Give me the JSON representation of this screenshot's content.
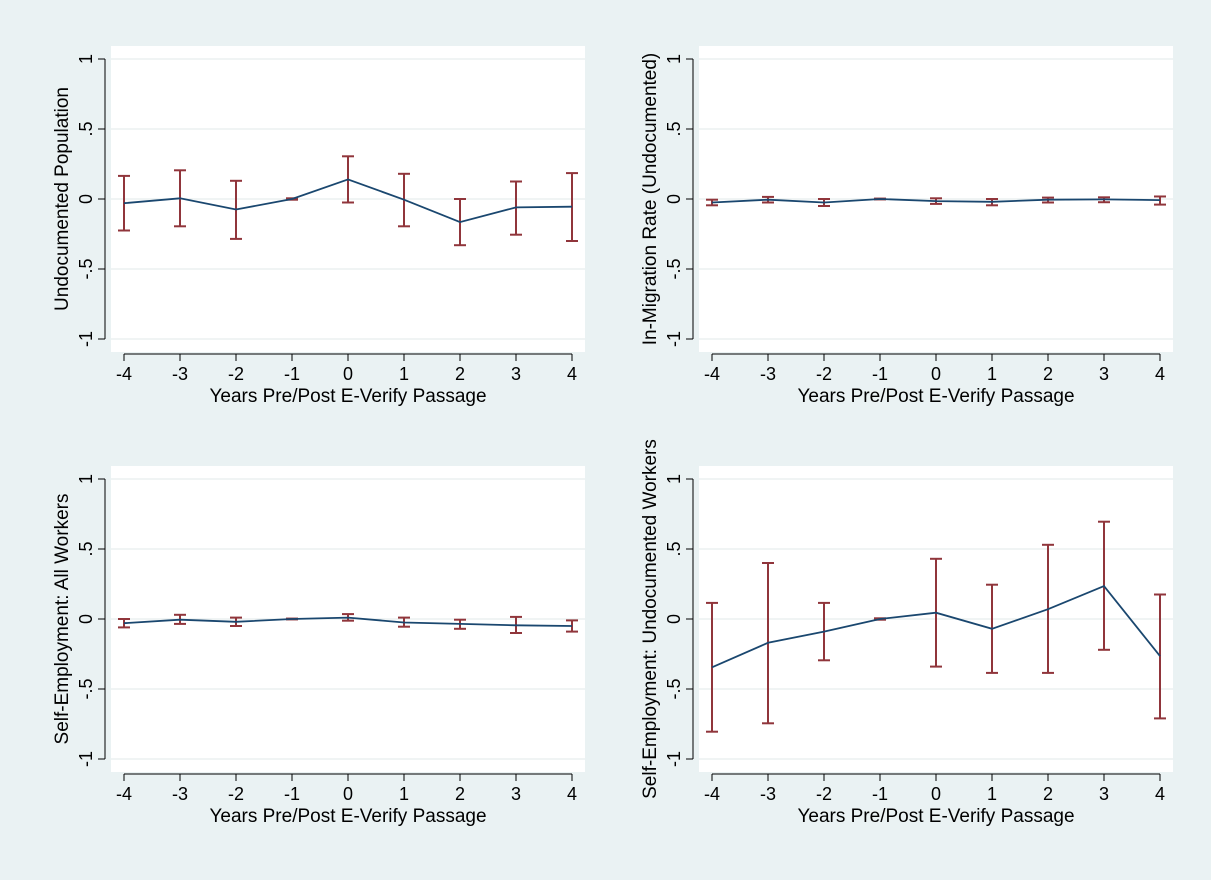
{
  "chart_data": [
    {
      "type": "line",
      "xlabel": "Years Pre/Post E-Verify Passage",
      "ylabel": "Undocumented Population",
      "x": [
        -4,
        -3,
        -2,
        -1,
        0,
        1,
        2,
        3,
        4
      ],
      "y": [
        -0.03,
        0.005,
        -0.075,
        0.0,
        0.14,
        -0.005,
        -0.165,
        -0.06,
        -0.055
      ],
      "ci_low": [
        -0.225,
        -0.195,
        -0.285,
        -0.005,
        -0.025,
        -0.195,
        -0.33,
        -0.255,
        -0.3
      ],
      "ci_high": [
        0.165,
        0.205,
        0.13,
        0.005,
        0.305,
        0.18,
        0.0,
        0.125,
        0.185
      ],
      "xlim": [
        -4,
        4
      ],
      "ylim": [
        -1,
        1
      ],
      "xticks": [
        "-4",
        "-3",
        "-2",
        "-1",
        "0",
        "1",
        "2",
        "3",
        "4"
      ],
      "yticks": [
        {
          "value": -1,
          "label": "-1"
        },
        {
          "value": -0.5,
          "label": "-.5"
        },
        {
          "value": 0,
          "label": "0"
        },
        {
          "value": 0.5,
          "label": ".5"
        },
        {
          "value": 1,
          "label": "1"
        }
      ],
      "grid": true
    },
    {
      "type": "line",
      "xlabel": "Years Pre/Post E-Verify Passage",
      "ylabel": "In-Migration Rate (Undocumented)",
      "x": [
        -4,
        -3,
        -2,
        -1,
        0,
        1,
        2,
        3,
        4
      ],
      "y": [
        -0.025,
        -0.005,
        -0.025,
        0.0,
        -0.015,
        -0.02,
        -0.005,
        -0.003,
        -0.008
      ],
      "ci_low": [
        -0.045,
        -0.025,
        -0.05,
        -0.003,
        -0.035,
        -0.045,
        -0.025,
        -0.023,
        -0.04
      ],
      "ci_high": [
        -0.005,
        0.015,
        0.0,
        0.003,
        0.005,
        0.0,
        0.01,
        0.012,
        0.018
      ],
      "xlim": [
        -4,
        4
      ],
      "ylim": [
        -1,
        1
      ],
      "xticks": [
        "-4",
        "-3",
        "-2",
        "-1",
        "0",
        "1",
        "2",
        "3",
        "4"
      ],
      "yticks": [
        {
          "value": -1,
          "label": "-1"
        },
        {
          "value": -0.5,
          "label": "-.5"
        },
        {
          "value": 0,
          "label": "0"
        },
        {
          "value": 0.5,
          "label": ".5"
        },
        {
          "value": 1,
          "label": "1"
        }
      ],
      "grid": true
    },
    {
      "type": "line",
      "xlabel": "Years Pre/Post E-Verify Passage",
      "ylabel": "Self-Employment: All Workers",
      "x": [
        -4,
        -3,
        -2,
        -1,
        0,
        1,
        2,
        3,
        4
      ],
      "y": [
        -0.03,
        -0.005,
        -0.02,
        0.0,
        0.01,
        -0.025,
        -0.035,
        -0.045,
        -0.05
      ],
      "ci_low": [
        -0.06,
        -0.035,
        -0.05,
        -0.003,
        -0.012,
        -0.055,
        -0.07,
        -0.1,
        -0.09
      ],
      "ci_high": [
        0.0,
        0.03,
        0.01,
        0.003,
        0.035,
        0.01,
        -0.005,
        0.015,
        -0.01
      ],
      "xlim": [
        -4,
        4
      ],
      "ylim": [
        -1,
        1
      ],
      "xticks": [
        "-4",
        "-3",
        "-2",
        "-1",
        "0",
        "1",
        "2",
        "3",
        "4"
      ],
      "yticks": [
        {
          "value": -1,
          "label": "-1"
        },
        {
          "value": -0.5,
          "label": "-.5"
        },
        {
          "value": 0,
          "label": "0"
        },
        {
          "value": 0.5,
          "label": ".5"
        },
        {
          "value": 1,
          "label": "1"
        }
      ],
      "grid": true
    },
    {
      "type": "line",
      "xlabel": "Years Pre/Post E-Verify Passage",
      "ylabel": "Self-Employment: Undocumented Workers",
      "x": [
        -4,
        -3,
        -2,
        -1,
        0,
        1,
        2,
        3,
        4
      ],
      "y": [
        -0.345,
        -0.17,
        -0.09,
        0.0,
        0.045,
        -0.07,
        0.07,
        0.235,
        -0.265
      ],
      "ci_low": [
        -0.805,
        -0.745,
        -0.295,
        -0.005,
        -0.34,
        -0.385,
        -0.385,
        -0.22,
        -0.71
      ],
      "ci_high": [
        0.115,
        0.4,
        0.115,
        0.005,
        0.43,
        0.245,
        0.53,
        0.695,
        0.175
      ],
      "xlim": [
        -4,
        4
      ],
      "ylim": [
        -1,
        1
      ],
      "xticks": [
        "-4",
        "-3",
        "-2",
        "-1",
        "0",
        "1",
        "2",
        "3",
        "4"
      ],
      "yticks": [
        {
          "value": -1,
          "label": "-1"
        },
        {
          "value": -0.5,
          "label": "-.5"
        },
        {
          "value": 0,
          "label": "0"
        },
        {
          "value": 0.5,
          "label": ".5"
        },
        {
          "value": 1,
          "label": "1"
        }
      ],
      "grid": true
    }
  ],
  "colors": {
    "background": "#eaf2f3",
    "plot_area": "#ffffff",
    "grid": "#e7eeee",
    "line": "#1a476f",
    "error_bar": "#90353b"
  }
}
